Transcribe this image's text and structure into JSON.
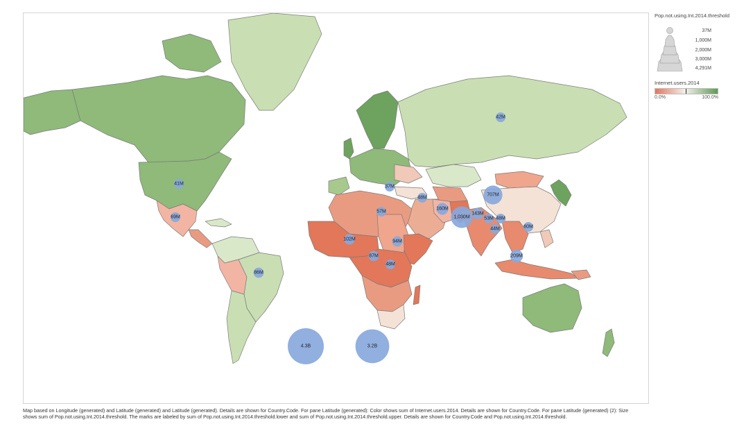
{
  "legend": {
    "size_title": "Pop.not.using.Int.2014.threshold",
    "size_items": [
      "37M",
      "1,000M",
      "2,000M",
      "3,000M",
      "4,291M"
    ],
    "color_title": "Internet.users.2014",
    "color_min": "0.0%",
    "color_max": "100.0%",
    "colors": {
      "low": "#e2775a",
      "mid": "#f4f0ec",
      "high": "#5f9a53"
    }
  },
  "bubbles": [
    {
      "label": "42M",
      "value": 42
    },
    {
      "label": "41M",
      "value": 41
    },
    {
      "label": "37M",
      "value": 37
    },
    {
      "label": "707M",
      "value": 707
    },
    {
      "label": "48M",
      "value": 48
    },
    {
      "label": "160M",
      "value": 160
    },
    {
      "label": "57M",
      "value": 57
    },
    {
      "label": "143M",
      "value": 143
    },
    {
      "label": "1,030M",
      "value": 1030
    },
    {
      "label": "53M",
      "value": 53
    },
    {
      "label": "48M",
      "value": 48
    },
    {
      "label": "69M",
      "value": 69
    },
    {
      "label": "60M",
      "value": 60
    },
    {
      "label": "102M",
      "value": 102
    },
    {
      "label": "94M",
      "value": 94
    },
    {
      "label": "44M",
      "value": 44
    },
    {
      "label": "87M",
      "value": 87
    },
    {
      "label": "209M",
      "value": 209
    },
    {
      "label": "48M",
      "value": 48
    },
    {
      "label": "86M",
      "value": 86
    },
    {
      "label": "4.3B",
      "value": 4300
    },
    {
      "label": "3.2B",
      "value": 3200
    }
  ],
  "caption": "Map based on Longitude (generated) and Latitude (generated) and Latitude (generated).  Details are shown for Country.Code.  For pane Latitude (generated):  Color shows sum of Internet.users.2014.  Details are shown for Country.Code.  For pane Latitude (generated) (2):  Size shows sum of Pop.not.using.Int.2014.threshold.  The marks are labeled by sum of Pop.not.using.Int.2014.threshold.lower and sum of Pop.not.using.Int.2014.threshold.upper.  Details are shown for Country.Code and Pop.not.using.Int.2014.threshold."
}
